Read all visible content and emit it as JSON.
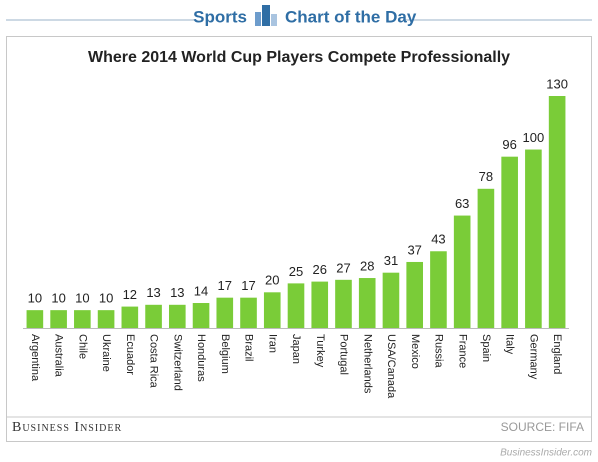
{
  "header": {
    "left": "Sports",
    "right": "Chart of the Day"
  },
  "chart_data": {
    "type": "bar",
    "title": "Where 2014 World Cup Players Compete Professionally",
    "categories": [
      "Argentina",
      "Australia",
      "Chile",
      "Ukraine",
      "Ecuador",
      "Costa Rica",
      "Switzerland",
      "Honduras",
      "Belgium",
      "Brazil",
      "Iran",
      "Japan",
      "Turkey",
      "Portugal",
      "Netherlands",
      "USA/Canada",
      "Mexico",
      "Russia",
      "France",
      "Spain",
      "Italy",
      "Germany",
      "England"
    ],
    "values": [
      10,
      10,
      10,
      10,
      12,
      13,
      13,
      14,
      17,
      17,
      20,
      25,
      26,
      27,
      28,
      31,
      37,
      43,
      63,
      78,
      96,
      100,
      130
    ],
    "color": "#7acc38"
  },
  "footer": {
    "brand": "Business Insider",
    "source": "SOURCE: FIFA",
    "site": "BusinessInsider.com"
  }
}
